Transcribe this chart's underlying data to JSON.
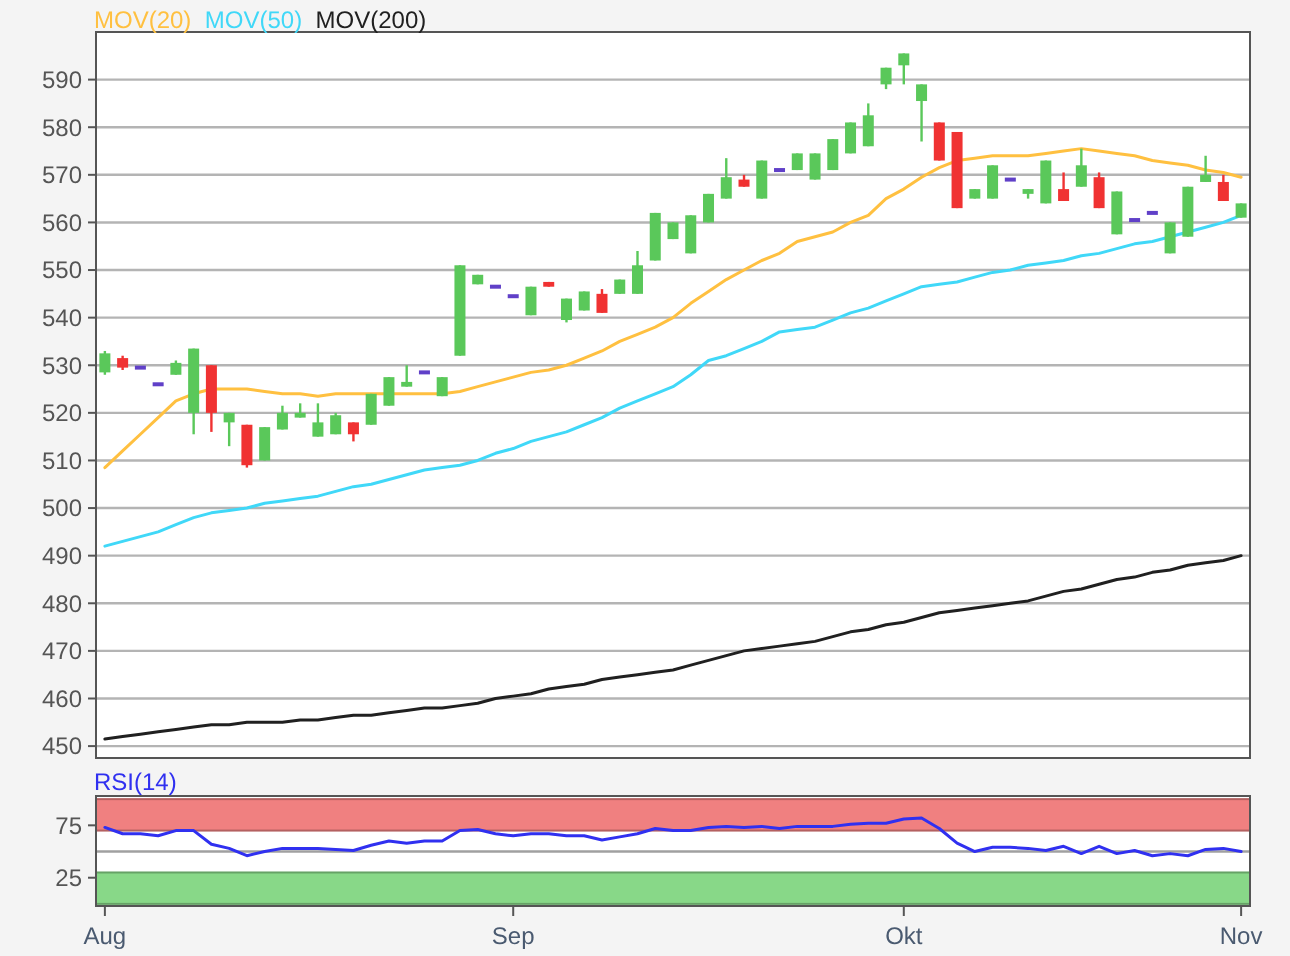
{
  "chart_data": [
    {
      "type": "candlestick",
      "legend": "top left",
      "grid": "y",
      "tick_labels": "y",
      "categories": [
        null,
        null,
        null,
        null,
        null,
        null,
        null,
        null,
        null,
        null,
        null,
        null,
        null,
        null,
        null,
        null,
        null,
        null,
        null,
        null,
        null,
        null,
        null,
        null,
        null,
        null,
        null,
        null,
        null,
        null,
        null,
        null,
        null,
        null,
        null,
        null,
        null,
        null,
        null,
        null,
        null,
        null,
        null,
        null,
        null,
        null,
        null,
        null,
        null,
        null,
        null,
        null,
        null,
        null,
        null,
        null,
        null,
        null,
        null,
        null,
        null,
        null,
        null,
        null,
        null
      ],
      "ohlc": [
        [
          528.5,
          533,
          528,
          532.5
        ],
        [
          531.5,
          532,
          529,
          529.5
        ],
        [
          529.5,
          529.5,
          529.5,
          529.5
        ],
        [
          526,
          526,
          526,
          526
        ],
        [
          528,
          531,
          528,
          530.5
        ],
        [
          520,
          533.5,
          515.5,
          533.5
        ],
        [
          530,
          530,
          516,
          520
        ],
        [
          518,
          520,
          513,
          520
        ],
        [
          517.5,
          517.5,
          508.5,
          509
        ],
        [
          510,
          517,
          510,
          517
        ],
        [
          516.5,
          521.5,
          516.5,
          520
        ],
        [
          519,
          522,
          519,
          520
        ],
        [
          515,
          522,
          515,
          518
        ],
        [
          515.5,
          520,
          515.5,
          519.5
        ],
        [
          518,
          518,
          514,
          515.5
        ],
        [
          517.5,
          524,
          517.5,
          524
        ],
        [
          521.5,
          527.5,
          521.5,
          527.5
        ],
        [
          525.5,
          530,
          525.5,
          526.5
        ],
        [
          528.5,
          528.5,
          528.5,
          528.5
        ],
        [
          523.5,
          527.5,
          523.5,
          527.5
        ],
        [
          532,
          551,
          532,
          551
        ],
        [
          547,
          549,
          547,
          549
        ],
        [
          546.5,
          546.5,
          546.5,
          546.5
        ],
        [
          544.5,
          544.5,
          544.5,
          544.5
        ],
        [
          540.5,
          546.5,
          540.5,
          546.5
        ],
        [
          547.5,
          547.5,
          546.5,
          546.5
        ],
        [
          539.5,
          544,
          539,
          544
        ],
        [
          541.5,
          545.5,
          541.5,
          545.5
        ],
        [
          545,
          546,
          541,
          541
        ],
        [
          545,
          548,
          545,
          548
        ],
        [
          545,
          554,
          545,
          551
        ],
        [
          552,
          562,
          552,
          562
        ],
        [
          556.5,
          560,
          556.5,
          560
        ],
        [
          553.5,
          561.5,
          553.5,
          561.5
        ],
        [
          560,
          566,
          560,
          566
        ],
        [
          565,
          573.5,
          565,
          569.5
        ],
        [
          569,
          570,
          567.5,
          567.5
        ],
        [
          565,
          573,
          565,
          573
        ],
        [
          571,
          571,
          571,
          571
        ],
        [
          571,
          574.5,
          571,
          574.5
        ],
        [
          569,
          574.5,
          569,
          574.5
        ],
        [
          571,
          577.5,
          571,
          577.5
        ],
        [
          574.5,
          581,
          574.5,
          581
        ],
        [
          576,
          585,
          576,
          582.5
        ],
        [
          589,
          592.5,
          588,
          592.5
        ],
        [
          593,
          595.5,
          589,
          595.5
        ],
        [
          585.5,
          589,
          577,
          589
        ],
        [
          581,
          581,
          573,
          573
        ],
        [
          579,
          579,
          563,
          563
        ],
        [
          565,
          567,
          565,
          567
        ],
        [
          565,
          572,
          565,
          572
        ],
        [
          569,
          569,
          569,
          569
        ],
        [
          566,
          567,
          565,
          567
        ],
        [
          564,
          573,
          564,
          573
        ],
        [
          567,
          570.5,
          564.5,
          564.5
        ],
        [
          567.5,
          575.5,
          567.5,
          572
        ],
        [
          569.5,
          570.5,
          563,
          563
        ],
        [
          557.5,
          566.5,
          557.5,
          566.5
        ],
        [
          560.5,
          560.5,
          560.5,
          560.5
        ],
        [
          562,
          562,
          562,
          562
        ],
        [
          553.5,
          560,
          553.5,
          560
        ],
        [
          557,
          567.5,
          557,
          567.5
        ],
        [
          568.5,
          574,
          568.5,
          570
        ],
        [
          568.5,
          570,
          564.5,
          564.5
        ],
        [
          561,
          564,
          561,
          564
        ]
      ],
      "colors": [
        "#5ac85a",
        "#f03232",
        "#6040c8",
        "#6040c8",
        "#5ac85a",
        "#5ac85a",
        "#f03232",
        "#5ac85a",
        "#f03232",
        "#5ac85a",
        "#5ac85a",
        "#5ac85a",
        "#5ac85a",
        "#5ac85a",
        "#f03232",
        "#5ac85a",
        "#5ac85a",
        "#5ac85a",
        "#6040c8",
        "#5ac85a",
        "#5ac85a",
        "#5ac85a",
        "#6040c8",
        "#6040c8",
        "#5ac85a",
        "#f03232",
        "#5ac85a",
        "#5ac85a",
        "#f03232",
        "#5ac85a",
        "#5ac85a",
        "#5ac85a",
        "#5ac85a",
        "#5ac85a",
        "#5ac85a",
        "#5ac85a",
        "#f03232",
        "#5ac85a",
        "#6040c8",
        "#5ac85a",
        "#5ac85a",
        "#5ac85a",
        "#5ac85a",
        "#5ac85a",
        "#5ac85a",
        "#5ac85a",
        "#5ac85a",
        "#f03232",
        "#f03232",
        "#5ac85a",
        "#5ac85a",
        "#6040c8",
        "#5ac85a",
        "#5ac85a",
        "#f03232",
        "#5ac85a",
        "#f03232",
        "#5ac85a",
        "#6040c8",
        "#6040c8",
        "#5ac85a",
        "#5ac85a",
        "#5ac85a",
        "#f03232",
        "#5ac85a"
      ],
      "series": [
        {
          "type": "line",
          "name": "MOV(20)",
          "color": "#ffc040",
          "values": [
            508.5,
            512,
            515.5,
            519,
            522.5,
            524,
            525,
            525,
            525,
            524.5,
            524,
            524,
            523.5,
            524,
            524,
            524,
            524,
            524,
            524,
            524,
            524.5,
            525.5,
            526.5,
            527.5,
            528.5,
            529,
            530,
            531.5,
            533,
            535,
            536.5,
            538,
            540,
            543,
            545.5,
            548,
            550,
            552,
            553.5,
            556,
            557,
            558,
            560,
            561.5,
            565,
            567,
            569.5,
            571.5,
            573,
            573.5,
            574,
            574,
            574,
            574.5,
            575,
            575.5,
            575,
            574.5,
            574,
            573,
            572.5,
            572,
            571,
            570.5,
            569.5
          ]
        },
        {
          "type": "line",
          "name": "MOV(50)",
          "color": "#40d8f8",
          "values": [
            492,
            493,
            494,
            495,
            496.5,
            498,
            499,
            499.5,
            500,
            501,
            501.5,
            502,
            502.5,
            503.5,
            504.5,
            505,
            506,
            507,
            508,
            508.5,
            509,
            510,
            511.5,
            512.5,
            514,
            515,
            516,
            517.5,
            519,
            521,
            522.5,
            524,
            525.5,
            528,
            531,
            532,
            533.5,
            535,
            537,
            537.5,
            538,
            539.5,
            541,
            542,
            543.5,
            545,
            546.5,
            547,
            547.5,
            548.5,
            549.5,
            550,
            551,
            551.5,
            552,
            553,
            553.5,
            554.5,
            555.5,
            556,
            557,
            558,
            559,
            560,
            561.5
          ]
        },
        {
          "type": "line",
          "name": "MOV(200)",
          "color": "#202020",
          "values": [
            451.5,
            452,
            452.5,
            453,
            453.5,
            454,
            454.5,
            454.5,
            455,
            455,
            455,
            455.5,
            455.5,
            456,
            456.5,
            456.5,
            457,
            457.5,
            458,
            458,
            458.5,
            459,
            460,
            460.5,
            461,
            462,
            462.5,
            463,
            464,
            464.5,
            465,
            465.5,
            466,
            467,
            468,
            469,
            470,
            470.5,
            471,
            471.5,
            472,
            473,
            474,
            474.5,
            475.5,
            476,
            477,
            478,
            478.5,
            479,
            479.5,
            480,
            480.5,
            481.5,
            482.5,
            483,
            484,
            485,
            485.5,
            486.5,
            487,
            488,
            488.5,
            489,
            490
          ]
        }
      ],
      "ylim": [
        447.5,
        600
      ],
      "yticks": [
        450,
        460,
        470,
        480,
        490,
        500,
        510,
        520,
        530,
        540,
        550,
        560,
        570,
        580,
        590
      ]
    },
    {
      "type": "line",
      "legend": "top left",
      "categories": [
        "Aug",
        null,
        null,
        null,
        null,
        null,
        null,
        null,
        null,
        null,
        null,
        null,
        null,
        null,
        null,
        null,
        null,
        null,
        null,
        null,
        null,
        null,
        null,
        "Sep",
        null,
        null,
        null,
        null,
        null,
        null,
        null,
        null,
        null,
        null,
        null,
        null,
        null,
        null,
        null,
        null,
        null,
        null,
        null,
        null,
        null,
        "Okt",
        null,
        null,
        null,
        null,
        null,
        null,
        null,
        null,
        null,
        null,
        null,
        null,
        null,
        null,
        null,
        null,
        null,
        null,
        "Nov"
      ],
      "series": [
        {
          "name": "RSI(14)",
          "color": "#3030f0",
          "values": [
            73,
            67,
            67,
            65,
            70,
            70,
            57,
            53,
            46,
            50,
            53,
            53,
            53,
            52,
            51,
            56,
            60,
            58,
            60,
            60,
            70,
            71,
            67,
            65,
            67,
            67,
            65,
            65,
            61,
            64,
            67,
            72,
            70,
            70,
            73,
            74,
            73,
            74,
            72,
            74,
            74,
            74,
            76,
            77,
            77,
            81,
            82,
            72,
            58,
            50,
            54,
            54,
            53,
            51,
            55,
            48,
            55,
            48,
            51,
            46,
            48,
            46,
            52,
            53,
            50
          ]
        }
      ],
      "bands": [
        {
          "axis": "y",
          "from": 70,
          "to": 100,
          "color": "#f08080"
        },
        {
          "axis": "y",
          "from": 0,
          "to": 30,
          "color": "#88d888"
        }
      ],
      "ref_lines": [
        {
          "axis": "y",
          "value": 50,
          "color": "#a0a0a0"
        }
      ],
      "ylim": [
        -2,
        103
      ],
      "yticks": [
        25,
        75
      ]
    }
  ]
}
